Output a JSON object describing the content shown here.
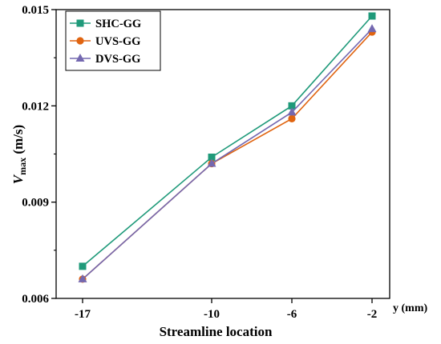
{
  "chart_data": {
    "type": "line",
    "x_categories": [
      -17,
      -10,
      -6,
      -2
    ],
    "x_tick_labels": [
      "-17",
      "-10",
      "-6",
      "-2"
    ],
    "y_ticks": [
      0.006,
      0.009,
      0.012,
      0.015
    ],
    "y_tick_labels": [
      "0.006",
      "0.009",
      "0.012",
      "0.015"
    ],
    "ylim": [
      0.006,
      0.015
    ],
    "xlabel": "Streamline location",
    "x_unit_label": "y (mm)",
    "ylabel": {
      "v": "V",
      "sub": "max",
      "unit": " (m/s)"
    },
    "grid": false,
    "legend_position": "top-left",
    "series": [
      {
        "name": "SHC-GG",
        "color": "#1f9a7a",
        "marker": "square",
        "values": [
          0.007,
          0.0104,
          0.012,
          0.0148
        ]
      },
      {
        "name": "UVS-GG",
        "color": "#e06410",
        "marker": "circle",
        "values": [
          0.0066,
          0.0102,
          0.0116,
          0.0143
        ]
      },
      {
        "name": "DVS-GG",
        "color": "#7468b0",
        "marker": "triangle",
        "values": [
          0.0066,
          0.0102,
          0.0118,
          0.0144
        ]
      }
    ]
  }
}
